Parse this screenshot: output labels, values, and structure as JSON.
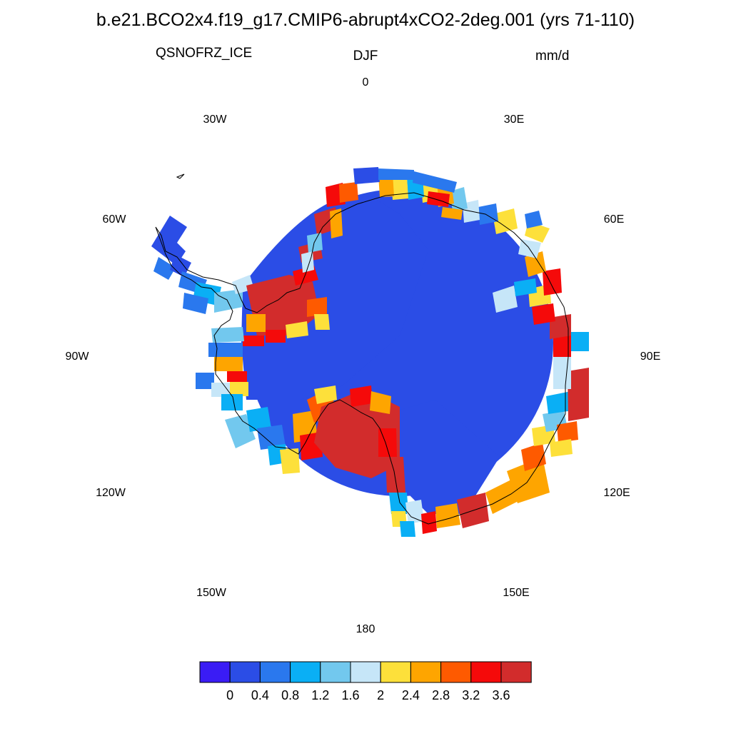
{
  "title": "b.e21.BCO2x4.f19_g17.CMIP6-abrupt4xCO2-2deg.001 (yrs 71-110)",
  "field_name": "QSNOFRZ_ICE",
  "season": "DJF",
  "units": "mm/d",
  "longitude_labels": [
    {
      "id": "lon-0",
      "text": "0"
    },
    {
      "id": "lon-30e",
      "text": "30E"
    },
    {
      "id": "lon-60e",
      "text": "60E"
    },
    {
      "id": "lon-90e",
      "text": "90E"
    },
    {
      "id": "lon-120e",
      "text": "120E"
    },
    {
      "id": "lon-150e",
      "text": "150E"
    },
    {
      "id": "lon-180",
      "text": "180"
    },
    {
      "id": "lon-150w",
      "text": "150W"
    },
    {
      "id": "lon-120w",
      "text": "120W"
    },
    {
      "id": "lon-90w",
      "text": "90W"
    },
    {
      "id": "lon-60w",
      "text": "60W"
    },
    {
      "id": "lon-30w",
      "text": "30W"
    }
  ],
  "colorbar": {
    "colors": [
      "#3a1cf5",
      "#2b4de6",
      "#2a78ee",
      "#0aaff5",
      "#72c8ee",
      "#c6e6f8",
      "#fde03a",
      "#fea500",
      "#fe5a00",
      "#f50a0a",
      "#d22c2c"
    ],
    "labels": [
      "0",
      "0.4",
      "0.8",
      "1.2",
      "1.6",
      "2",
      "2.4",
      "2.8",
      "3.2",
      "3.6"
    ]
  }
}
